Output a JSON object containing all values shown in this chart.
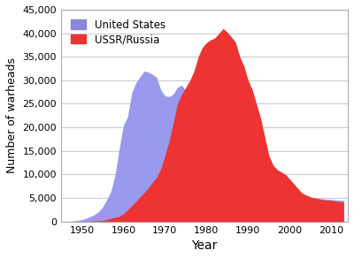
{
  "title": "",
  "xlabel": "Year",
  "ylabel": "Number of warheads",
  "xlim": [
    1945,
    2014
  ],
  "ylim": [
    0,
    45000
  ],
  "yticks": [
    0,
    5000,
    10000,
    15000,
    20000,
    25000,
    30000,
    35000,
    40000,
    45000
  ],
  "xticks": [
    1950,
    1960,
    1970,
    1980,
    1990,
    2000,
    2010
  ],
  "us_years": [
    1945,
    1946,
    1947,
    1948,
    1949,
    1950,
    1951,
    1952,
    1953,
    1954,
    1955,
    1956,
    1957,
    1958,
    1959,
    1960,
    1961,
    1962,
    1963,
    1964,
    1965,
    1966,
    1967,
    1968,
    1969,
    1970,
    1971,
    1972,
    1973,
    1974,
    1975,
    1976,
    1977,
    1978,
    1979,
    1980,
    1981,
    1982,
    1983,
    1984,
    1985,
    1986,
    1987,
    1988,
    1989,
    1990,
    1991,
    1992,
    1993,
    1994,
    1995,
    1996,
    1997,
    1998,
    1999,
    2000,
    2001,
    2002,
    2003,
    2004,
    2005,
    2006,
    2007,
    2008,
    2009,
    2010,
    2011,
    2012,
    2013
  ],
  "us_values": [
    6,
    11,
    32,
    110,
    235,
    369,
    640,
    1005,
    1436,
    2063,
    3057,
    4618,
    6444,
    9822,
    15468,
    20434,
    22229,
    27297,
    29463,
    30751,
    31982,
    31700,
    31255,
    30616,
    27954,
    26662,
    26525,
    27052,
    28535,
    28980,
    27826,
    26300,
    25099,
    24243,
    24243,
    23764,
    23031,
    21761,
    21141,
    19844,
    17735,
    16979,
    14401,
    13490,
    12780,
    11000,
    9986,
    9500,
    9030,
    8600,
    8000,
    7560,
    7200,
    7000,
    6800,
    6600,
    6300,
    6000,
    5800,
    5500,
    5100,
    5000,
    4900,
    4800,
    4750,
    4650,
    4600,
    4500,
    4500
  ],
  "ussr_years": [
    1949,
    1950,
    1951,
    1952,
    1953,
    1954,
    1955,
    1956,
    1957,
    1958,
    1959,
    1960,
    1961,
    1962,
    1963,
    1964,
    1965,
    1966,
    1967,
    1968,
    1969,
    1970,
    1971,
    1972,
    1973,
    1974,
    1975,
    1976,
    1977,
    1978,
    1979,
    1980,
    1981,
    1982,
    1983,
    1984,
    1985,
    1986,
    1987,
    1988,
    1989,
    1990,
    1991,
    1992,
    1993,
    1994,
    1995,
    1996,
    1997,
    1998,
    1999,
    2000,
    2001,
    2002,
    2003,
    2004,
    2005,
    2006,
    2007,
    2008,
    2009,
    2010,
    2011,
    2012,
    2013
  ],
  "ussr_values": [
    1,
    5,
    25,
    50,
    120,
    150,
    200,
    426,
    660,
    869,
    1060,
    1605,
    2471,
    3322,
    4238,
    5221,
    6129,
    7089,
    8339,
    9399,
    11200,
    14000,
    17000,
    21000,
    25000,
    27000,
    28500,
    30000,
    32000,
    35000,
    37000,
    38000,
    38600,
    39000,
    40000,
    41000,
    40200,
    39200,
    38000,
    35000,
    33000,
    30000,
    28000,
    25000,
    22000,
    18000,
    14000,
    12000,
    11000,
    10500,
    10000,
    9000,
    8000,
    7000,
    6000,
    5600,
    5200,
    5000,
    4800,
    4600,
    4500,
    4500,
    4300,
    4200,
    4100
  ],
  "us_color": "#9999ee",
  "ussr_color": "#ee3333",
  "bg_color": "#ffffff",
  "grid_color": "#cccccc",
  "border_color": "#aaaaaa",
  "legend_us": "United States",
  "legend_ussr": "USSR/Russia",
  "legend_us_color": "#8888dd",
  "legend_ussr_color": "#ee3333"
}
